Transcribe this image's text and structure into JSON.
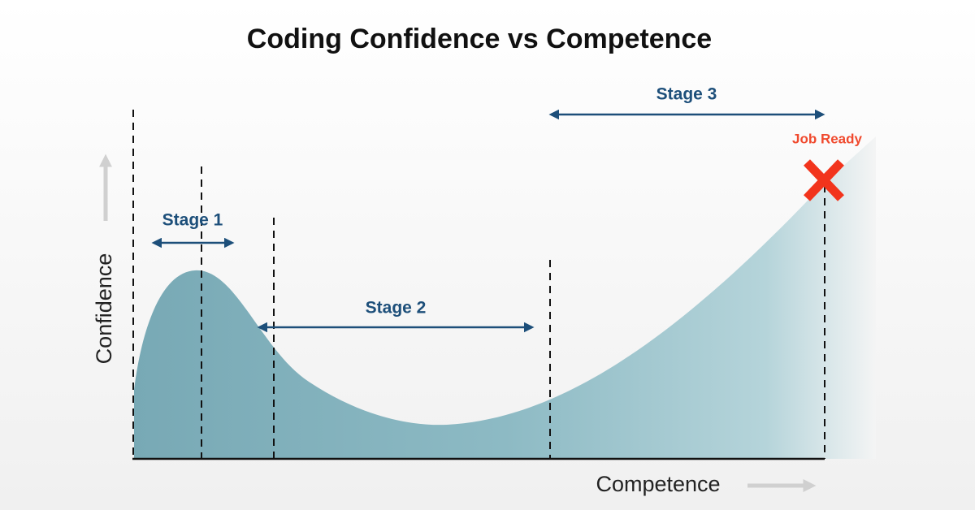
{
  "title": "Coding Confidence vs Competence",
  "y_axis_label": "Confidence",
  "x_axis_label": "Competence",
  "stages": [
    {
      "label": "Stage 1"
    },
    {
      "label": "Stage 2"
    },
    {
      "label": "Stage 3"
    }
  ],
  "marker_label": "Job Ready"
}
